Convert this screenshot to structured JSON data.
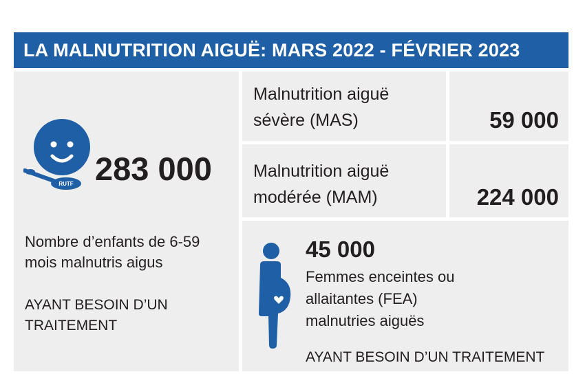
{
  "title": "LA MALNUTRITION AIGUË: MARS 2022 - FÉVRIER 2023",
  "children": {
    "total": "283 000",
    "description": [
      "Nombre d’enfants de 6-59",
      "mois malnutris aigus"
    ],
    "need": [
      "AYANT BESOIN D’UN",
      "TRAITEMENT"
    ],
    "icon": "child-with-spoon-icon",
    "spoon_label": "RUTF"
  },
  "mas": {
    "label": [
      "Malnutrition aiguë",
      "sévère (MAS)"
    ],
    "value": "59 000"
  },
  "mam": {
    "label": [
      "Malnutrition aiguë",
      "modérée (MAM)"
    ],
    "value": "224 000"
  },
  "fea": {
    "value": "45 000",
    "description": [
      "Femmes enceintes ou",
      "allaitantes (FEA)",
      "malnutries aiguës"
    ],
    "need": "AYANT BESOIN D’UN TRAITEMENT",
    "icon": "pregnant-woman-icon"
  },
  "colors": {
    "accent": "#1f5fa6",
    "panel": "#eeeeef",
    "text": "#231f20"
  }
}
